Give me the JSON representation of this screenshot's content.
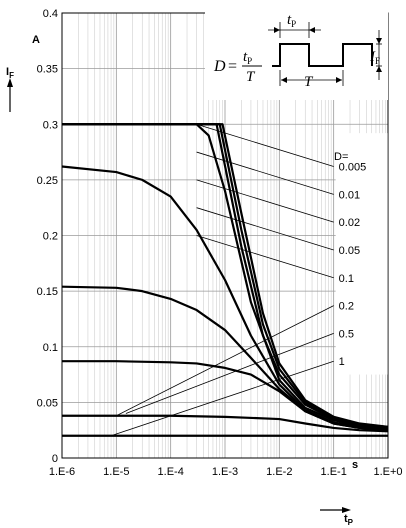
{
  "chart_data": {
    "type": "line",
    "x_scale": "log",
    "y_scale": "linear",
    "xlim": [
      1e-06,
      1
    ],
    "ylim": [
      0,
      0.4
    ],
    "grid": true,
    "x_ticks": [
      "1.E-6",
      "1.E-5",
      "1.E-4",
      "1.E-3",
      "1.E-2",
      "1.E-1",
      "1.E+0"
    ],
    "x_tick_values": [
      1e-06,
      1e-05,
      0.0001,
      0.001,
      0.01,
      0.1,
      1
    ],
    "y_ticks": [
      "0",
      "0.05",
      "0.1",
      "0.15",
      "0.2",
      "0.25",
      "0.3",
      "0.35",
      "0.4"
    ],
    "y_tick_values": [
      0,
      0.05,
      0.1,
      0.15,
      0.2,
      0.25,
      0.3,
      0.35,
      0.4
    ],
    "y_label": "IF",
    "y_unit": "A",
    "x_label": "tP",
    "x_unit": "s",
    "duty_header": "D=",
    "inset": {
      "formula_lhs": "D",
      "formula_num": "t",
      "formula_num_sub": "P",
      "formula_den": "T",
      "period_label": "T",
      "pulse_label": "t",
      "pulse_label_sub": "P",
      "current_label": "I",
      "current_label_sub": "F"
    },
    "series": [
      {
        "name": "0.005",
        "label_xy": [
          0.1,
          0.262
        ],
        "points": [
          [
            1e-06,
            0.3
          ],
          [
            1e-05,
            0.3
          ],
          [
            0.0001,
            0.3
          ],
          [
            0.0005,
            0.3
          ],
          [
            0.0009,
            0.3
          ],
          [
            0.002,
            0.22
          ],
          [
            0.005,
            0.13
          ],
          [
            0.01,
            0.085
          ],
          [
            0.03,
            0.052
          ],
          [
            0.1,
            0.037
          ],
          [
            0.3,
            0.031
          ],
          [
            1,
            0.028
          ]
        ]
      },
      {
        "name": "0.01",
        "label_xy": [
          0.1,
          0.237
        ],
        "points": [
          [
            1e-06,
            0.3
          ],
          [
            1e-05,
            0.3
          ],
          [
            0.0001,
            0.3
          ],
          [
            0.0005,
            0.3
          ],
          [
            0.0008,
            0.3
          ],
          [
            0.002,
            0.205
          ],
          [
            0.005,
            0.12
          ],
          [
            0.01,
            0.08
          ],
          [
            0.03,
            0.05
          ],
          [
            0.1,
            0.036
          ],
          [
            0.3,
            0.03
          ],
          [
            1,
            0.028
          ]
        ]
      },
      {
        "name": "0.02",
        "label_xy": [
          0.1,
          0.212
        ],
        "points": [
          [
            1e-06,
            0.3
          ],
          [
            1e-05,
            0.3
          ],
          [
            0.0001,
            0.3
          ],
          [
            0.0004,
            0.3
          ],
          [
            0.0007,
            0.3
          ],
          [
            0.002,
            0.19
          ],
          [
            0.005,
            0.11
          ],
          [
            0.01,
            0.075
          ],
          [
            0.03,
            0.048
          ],
          [
            0.1,
            0.035
          ],
          [
            0.3,
            0.03
          ],
          [
            1,
            0.027
          ]
        ]
      },
      {
        "name": "0.05",
        "label_xy": [
          0.1,
          0.187
        ],
        "points": [
          [
            1e-06,
            0.3
          ],
          [
            1e-05,
            0.3
          ],
          [
            0.0001,
            0.3
          ],
          [
            0.0003,
            0.3
          ],
          [
            0.0005,
            0.29
          ],
          [
            0.001,
            0.24
          ],
          [
            0.003,
            0.14
          ],
          [
            0.01,
            0.07
          ],
          [
            0.03,
            0.045
          ],
          [
            0.1,
            0.034
          ],
          [
            0.3,
            0.029
          ],
          [
            1,
            0.027
          ]
        ]
      },
      {
        "name": "0.1",
        "label_xy": [
          0.1,
          0.162
        ],
        "points": [
          [
            1e-06,
            0.262
          ],
          [
            1e-05,
            0.257
          ],
          [
            3e-05,
            0.25
          ],
          [
            0.0001,
            0.235
          ],
          [
            0.0003,
            0.205
          ],
          [
            0.001,
            0.16
          ],
          [
            0.003,
            0.11
          ],
          [
            0.01,
            0.066
          ],
          [
            0.03,
            0.043
          ],
          [
            0.1,
            0.032
          ],
          [
            0.3,
            0.028
          ],
          [
            1,
            0.026
          ]
        ]
      },
      {
        "name": "0.2",
        "label_xy": [
          0.1,
          0.137
        ],
        "points": [
          [
            1e-06,
            0.154
          ],
          [
            1e-05,
            0.153
          ],
          [
            3e-05,
            0.15
          ],
          [
            0.0001,
            0.143
          ],
          [
            0.0003,
            0.133
          ],
          [
            0.001,
            0.115
          ],
          [
            0.003,
            0.09
          ],
          [
            0.01,
            0.062
          ],
          [
            0.03,
            0.042
          ],
          [
            0.1,
            0.031
          ],
          [
            0.3,
            0.027
          ],
          [
            1,
            0.025
          ]
        ]
      },
      {
        "name": "0.5",
        "label_xy": [
          0.1,
          0.112
        ],
        "points": [
          [
            1e-06,
            0.087
          ],
          [
            1e-05,
            0.087
          ],
          [
            0.0001,
            0.086
          ],
          [
            0.0003,
            0.085
          ],
          [
            0.001,
            0.081
          ],
          [
            0.003,
            0.075
          ],
          [
            0.01,
            0.06
          ],
          [
            0.03,
            0.042
          ],
          [
            0.1,
            0.031
          ],
          [
            0.3,
            0.027
          ],
          [
            1,
            0.025
          ]
        ]
      },
      {
        "name": "1",
        "label_xy": [
          0.1,
          0.087
        ],
        "points": [
          [
            1e-06,
            0.038
          ],
          [
            1e-05,
            0.038
          ],
          [
            0.0001,
            0.038
          ],
          [
            0.001,
            0.037
          ],
          [
            0.01,
            0.035
          ],
          [
            0.03,
            0.031
          ],
          [
            0.1,
            0.027
          ],
          [
            0.3,
            0.025
          ],
          [
            1,
            0.024
          ]
        ]
      }
    ],
    "baseline_level": 0.02,
    "leader_lines": [
      {
        "from": [
          0.0003,
          0.3
        ],
        "to": [
          0.1,
          0.262
        ]
      },
      {
        "from": [
          0.0003,
          0.275
        ],
        "to": [
          0.1,
          0.237
        ]
      },
      {
        "from": [
          0.0003,
          0.25
        ],
        "to": [
          0.1,
          0.212
        ]
      },
      {
        "from": [
          0.0003,
          0.225
        ],
        "to": [
          0.1,
          0.187
        ]
      },
      {
        "from": [
          0.0003,
          0.2
        ],
        "to": [
          0.1,
          0.162
        ]
      },
      {
        "from": [
          1e-05,
          0.038
        ],
        "to": [
          0.1,
          0.137
        ]
      },
      {
        "from": [
          1.5e-05,
          0.04
        ],
        "to": [
          0.1,
          0.112
        ]
      },
      {
        "from": [
          8e-06,
          0.02
        ],
        "to": [
          0.1,
          0.087
        ]
      }
    ]
  }
}
